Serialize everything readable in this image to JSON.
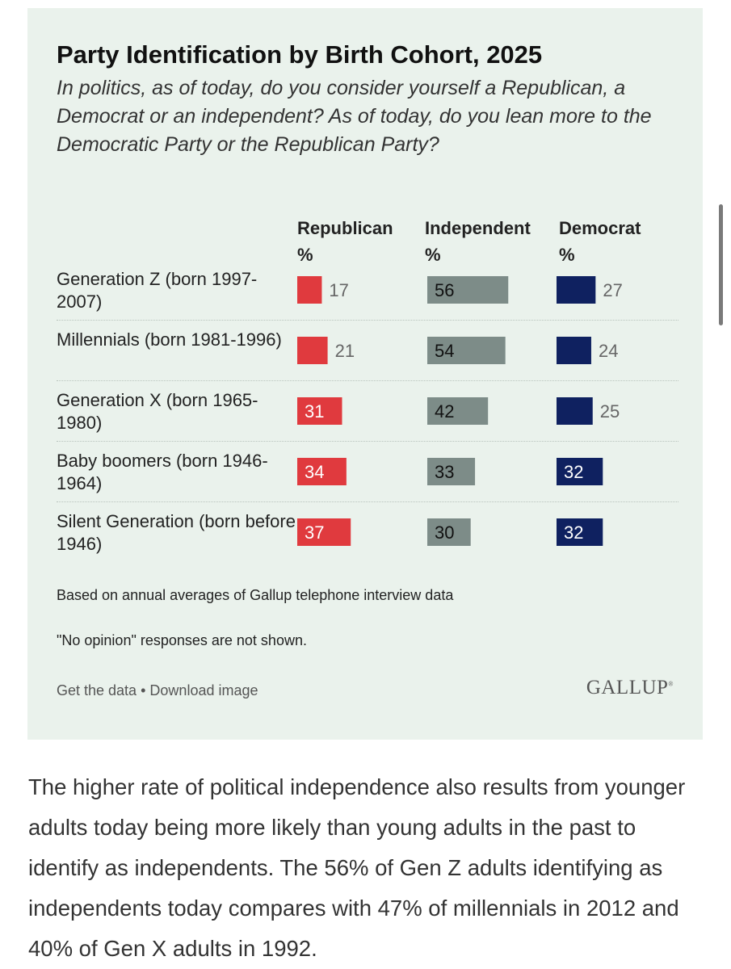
{
  "figure": {
    "title": "Party Identification by Birth Cohort, 2025",
    "subtitle": "In politics, as of today, do you consider yourself a Republican, a Democrat or an independent? As of today, do you lean more to the Democratic Party or the Republican Party?",
    "notes": [
      "Based on annual averages of Gallup telephone interview data",
      "\"No opinion\" responses are not shown."
    ],
    "footer": {
      "get_data": "Get the data",
      "separator": "•",
      "download": "Download image",
      "logo": "GALLUP"
    }
  },
  "chart_data": {
    "type": "bar",
    "title": "Party Identification by Birth Cohort, 2025",
    "categories": [
      "Generation Z (born 1997-2007)",
      "Millennials (born 1981-1996)",
      "Generation X (born 1965-1980)",
      "Baby boomers (born 1946-1964)",
      "Silent Generation (born before 1946)"
    ],
    "series": [
      {
        "name": "Republican",
        "unit": "%",
        "color": "#e03a3e",
        "values": [
          17,
          21,
          31,
          34,
          37
        ]
      },
      {
        "name": "Independent",
        "unit": "%",
        "color": "#7d8c88",
        "values": [
          56,
          54,
          42,
          33,
          30
        ]
      },
      {
        "name": "Democrat",
        "unit": "%",
        "color": "#0f2160",
        "values": [
          27,
          24,
          25,
          32,
          32
        ]
      }
    ]
  },
  "article": {
    "paragraph": "The higher rate of political independence also results from younger adults today being more likely than young adults in the past to identify as independents. The 56% of Gen Z adults identifying as independents today compares with 47% of millennials in 2012 and 40% of Gen X adults in 1992."
  }
}
